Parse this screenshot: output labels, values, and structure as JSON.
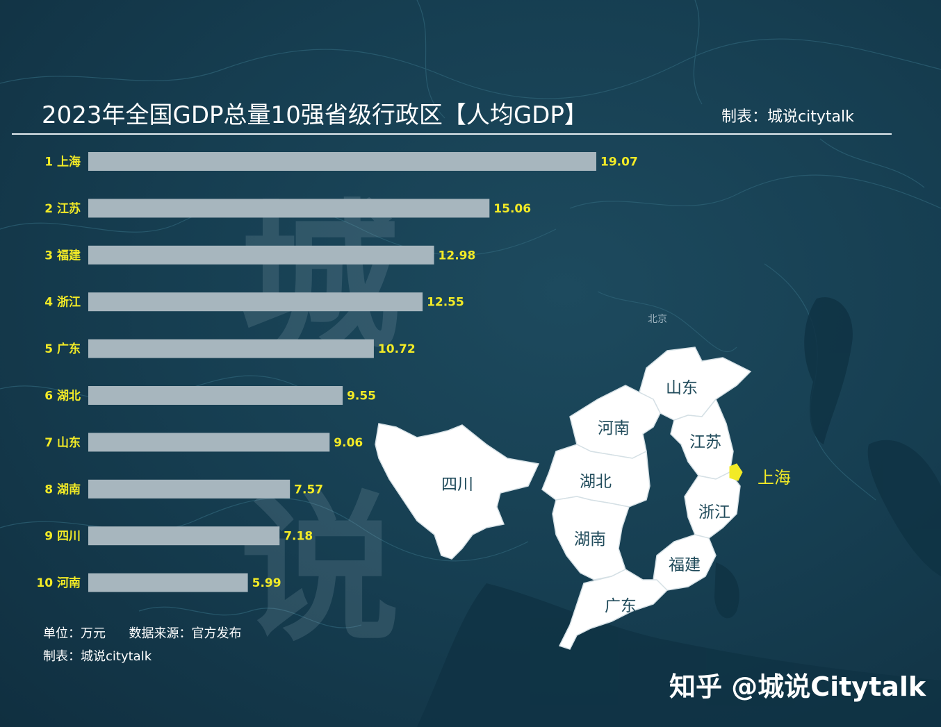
{
  "header": {
    "title": "2023年全国GDP总量10强省级行政区【人均GDP】",
    "maker": "制表：城说citytalk"
  },
  "footer": {
    "unit": "单位：万元",
    "source": "数据来源：官方发布",
    "maker": "制表：城说citytalk"
  },
  "credit": "知乎 @城说Citytalk",
  "map": {
    "beijing_label": "北京",
    "highlight_label": "上海",
    "provinces": [
      "山东",
      "河南",
      "江苏",
      "四川",
      "湖北",
      "浙江",
      "湖南",
      "福建",
      "广东"
    ]
  },
  "colors": {
    "background": "#143a4c",
    "bar": "#a7b6be",
    "value_label": "#f2ea26",
    "category_label": "#f2ea26",
    "map_fill": "#ffffff",
    "highlight": "#f2ea26"
  },
  "chart_data": {
    "type": "bar",
    "orientation": "horizontal",
    "categories": [
      "1 上海",
      "2 江苏",
      "3 福建",
      "4 浙江",
      "5 广东",
      "6 湖北",
      "7 山东",
      "8 湖南",
      "9 四川",
      "10 河南"
    ],
    "values": [
      19.07,
      15.06,
      12.98,
      12.55,
      10.72,
      9.55,
      9.06,
      7.57,
      7.18,
      5.99
    ],
    "value_labels": [
      "19.07",
      "15.06",
      "12.98",
      "12.55",
      "10.72",
      "9.55",
      "9.06",
      "7.57",
      "7.18",
      "5.99"
    ],
    "title": "2023年全国GDP总量10强省级行政区【人均GDP】",
    "xlabel": "",
    "ylabel": "",
    "unit": "万元",
    "grid": false,
    "legend": "none"
  }
}
